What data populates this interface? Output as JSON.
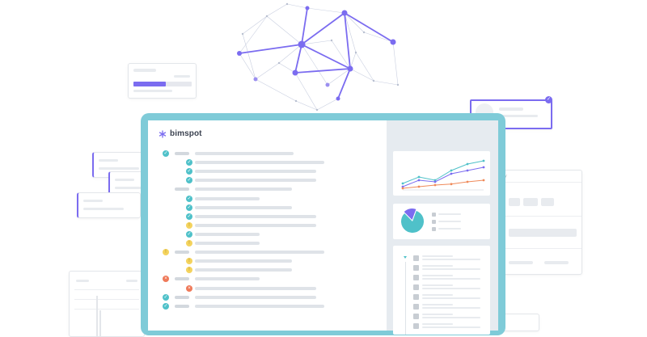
{
  "app": {
    "logo_text": "bimspot"
  },
  "icons": {
    "logo": "asterisk-logo-icon",
    "check": "check-icon",
    "warning": "warning-icon",
    "error": "error-icon",
    "user": "user-icon",
    "donut": "pie-chart-icon",
    "line_chart": "line-chart-icon",
    "network": "network-graph-icon"
  },
  "colors": {
    "monitor": "#7fcbd8",
    "accent": "#7b6cf0",
    "ok": "#4fc1c9",
    "warning": "#f4d35e",
    "error": "#ef7a5a",
    "series_teal": "#4fc1c9",
    "series_purple": "#7b6cf0",
    "series_orange": "#ef8a5a"
  },
  "checklist": [
    {
      "status": "ok",
      "indent": 0
    },
    {
      "status": "ok",
      "indent": 1
    },
    {
      "status": "ok",
      "indent": 1
    },
    {
      "status": "ok",
      "indent": 1
    },
    {
      "status": "none",
      "indent": 0
    },
    {
      "status": "ok",
      "indent": 1
    },
    {
      "status": "ok",
      "indent": 1
    },
    {
      "status": "ok",
      "indent": 1
    },
    {
      "status": "warning",
      "indent": 1
    },
    {
      "status": "ok",
      "indent": 1
    },
    {
      "status": "warning",
      "indent": 1
    },
    {
      "status": "warning",
      "indent": 0
    },
    {
      "status": "warning",
      "indent": 1
    },
    {
      "status": "warning",
      "indent": 1
    },
    {
      "status": "error",
      "indent": 0
    },
    {
      "status": "error",
      "indent": 1
    },
    {
      "status": "ok",
      "indent": 0
    },
    {
      "status": "ok",
      "indent": 0
    }
  ],
  "chart_data": {
    "type": "line",
    "x": [
      1,
      2,
      3,
      4,
      5,
      6
    ],
    "series": [
      {
        "values": [
          2,
          4,
          3,
          6,
          8,
          9
        ]
      },
      {
        "values": [
          1,
          3,
          2.5,
          5,
          6,
          7
        ]
      },
      {
        "values": [
          0.5,
          1,
          1.5,
          1.8,
          2.5,
          3
        ]
      }
    ]
  },
  "pie_data": {
    "type": "pie",
    "values": [
      82,
      18
    ]
  },
  "user_rows": 8
}
